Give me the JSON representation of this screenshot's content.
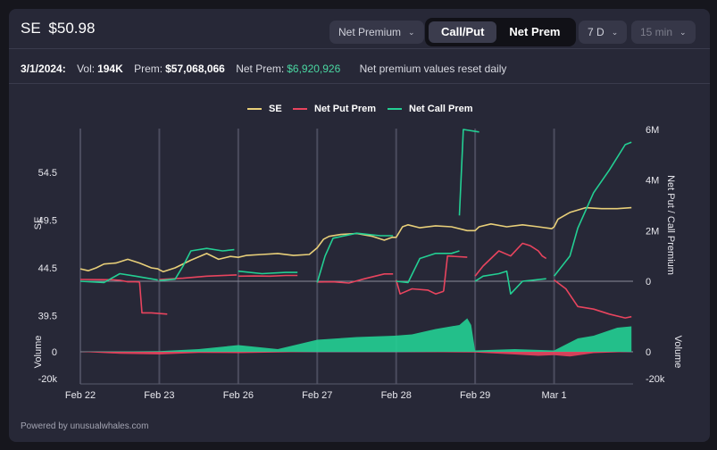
{
  "header": {
    "ticker": "SE",
    "price": "$50.98"
  },
  "controls": {
    "metric_dropdown": "Net Premium",
    "toggle": [
      "Call/Put",
      "Net Prem"
    ],
    "toggle_active": "Call/Put",
    "range_dropdown": "7 D",
    "interval_dropdown": "15 min"
  },
  "info": {
    "date": "3/1/2024:",
    "vol_label": "Vol:",
    "vol_value": "194K",
    "prem_label": "Prem:",
    "prem_value": "$57,068,066",
    "net_prem_label": "Net Prem:",
    "net_prem_value": "$6,920,926",
    "note": "Net premium values reset daily"
  },
  "footer": "Powered by unusualwhales.com",
  "colors": {
    "se": "#e8cf79",
    "put": "#e8445e",
    "call": "#23cf93",
    "grid": "#4b4c5e"
  },
  "chart_data": [
    {
      "type": "line",
      "legend": [
        "SE",
        "Net Put Prem",
        "Net Call Prem"
      ],
      "legend_position": "top-center",
      "x_ticks": [
        "Feb 22",
        "Feb 23",
        "Feb 26",
        "Feb 27",
        "Feb 28",
        "Feb 29",
        "Mar 1"
      ],
      "y_left_label": "SE",
      "y_left_ticks": [
        "54.5",
        "49.5",
        "44.5",
        "39.5"
      ],
      "y_left_range": [
        39.5,
        59.5
      ],
      "y_right_label": "Net Put / Call Premium",
      "y_right_ticks": [
        "6M",
        "4M",
        "2M",
        "0"
      ],
      "y_right_range": [
        -1500000,
        6000000
      ],
      "grid": true,
      "series": [
        {
          "name": "SE",
          "points": [
            [
              0,
              44.4
            ],
            [
              0.1,
              44.2
            ],
            [
              0.2,
              44.5
            ],
            [
              0.3,
              44.9
            ],
            [
              0.45,
              45.0
            ],
            [
              0.6,
              45.4
            ],
            [
              0.75,
              45.0
            ],
            [
              0.9,
              44.5
            ],
            [
              0.98,
              44.4
            ],
            [
              1.0,
              44.3
            ],
            [
              1.05,
              44.1
            ],
            [
              1.2,
              44.5
            ],
            [
              1.4,
              45.3
            ],
            [
              1.6,
              46.0
            ],
            [
              1.75,
              45.4
            ],
            [
              1.9,
              45.7
            ],
            [
              2.0,
              45.6
            ],
            [
              2.1,
              45.8
            ],
            [
              2.3,
              45.9
            ],
            [
              2.5,
              46.0
            ],
            [
              2.7,
              45.8
            ],
            [
              2.9,
              45.9
            ],
            [
              3.0,
              46.6
            ],
            [
              3.08,
              47.5
            ],
            [
              3.15,
              47.8
            ],
            [
              3.3,
              48.0
            ],
            [
              3.5,
              48.1
            ],
            [
              3.7,
              47.8
            ],
            [
              3.85,
              47.4
            ],
            [
              3.95,
              47.7
            ],
            [
              4.0,
              47.7
            ],
            [
              4.08,
              48.8
            ],
            [
              4.15,
              49.0
            ],
            [
              4.3,
              48.7
            ],
            [
              4.5,
              48.9
            ],
            [
              4.7,
              48.8
            ],
            [
              4.9,
              48.4
            ],
            [
              5.0,
              48.4
            ],
            [
              5.05,
              48.8
            ],
            [
              5.2,
              49.1
            ],
            [
              5.4,
              48.8
            ],
            [
              5.6,
              49.0
            ],
            [
              5.8,
              48.8
            ],
            [
              5.97,
              48.6
            ],
            [
              6.0,
              48.8
            ],
            [
              6.05,
              49.6
            ],
            [
              6.2,
              50.3
            ],
            [
              6.4,
              50.8
            ],
            [
              6.6,
              50.7
            ],
            [
              6.8,
              50.7
            ],
            [
              6.98,
              50.8
            ]
          ]
        },
        {
          "name": "Net Put Prem",
          "segments": [
            [
              [
                0,
                70000
              ],
              [
                0.4,
                60000
              ],
              [
                0.5,
                40000
              ],
              [
                0.6,
                -20000
              ],
              [
                0.7,
                -20000
              ],
              [
                0.75,
                -30000
              ]
            ],
            [
              [
                0.75,
                -30000
              ],
              [
                0.78,
                -1250000
              ],
              [
                0.9,
                -1250000
              ],
              [
                1.1,
                -1300000
              ]
            ],
            [
              [
                1.0,
                70000
              ],
              [
                1.3,
                120000
              ],
              [
                1.6,
                200000
              ],
              [
                1.9,
                240000
              ],
              [
                1.98,
                250000
              ]
            ],
            [
              [
                2.0,
                200000
              ],
              [
                2.2,
                210000
              ],
              [
                2.4,
                200000
              ],
              [
                2.6,
                230000
              ],
              [
                2.75,
                230000
              ]
            ],
            [
              [
                3.0,
                -30000
              ],
              [
                3.2,
                -20000
              ],
              [
                3.4,
                -70000
              ],
              [
                3.6,
                100000
              ],
              [
                3.85,
                290000
              ],
              [
                3.96,
                290000
              ]
            ],
            [
              [
                4.0,
                50000
              ],
              [
                4.05,
                -500000
              ],
              [
                4.2,
                -300000
              ],
              [
                4.4,
                -350000
              ],
              [
                4.5,
                -500000
              ],
              [
                4.6,
                -400000
              ]
            ],
            [
              [
                4.6,
                -400000
              ],
              [
                4.65,
                1000000
              ],
              [
                4.9,
                950000
              ]
            ],
            [
              [
                5.0,
                200000
              ],
              [
                5.1,
                600000
              ],
              [
                5.3,
                1200000
              ],
              [
                5.45,
                1000000
              ],
              [
                5.6,
                1500000
              ],
              [
                5.7,
                1400000
              ],
              [
                5.8,
                1200000
              ],
              [
                5.85,
                1000000
              ],
              [
                5.9,
                900000
              ]
            ],
            [
              [
                6.0,
                50000
              ],
              [
                6.15,
                -300000
              ],
              [
                6.3,
                -1000000
              ],
              [
                6.5,
                -1100000
              ],
              [
                6.7,
                -1300000
              ],
              [
                6.9,
                -1450000
              ],
              [
                6.98,
                -1400000
              ]
            ]
          ]
        },
        {
          "name": "Net Call Prem",
          "segments": [
            [
              [
                0,
                0
              ],
              [
                0.3,
                -50000
              ],
              [
                0.5,
                300000
              ],
              [
                0.7,
                200000
              ],
              [
                0.98,
                50000
              ]
            ],
            [
              [
                1.0,
                30000
              ],
              [
                1.2,
                80000
              ],
              [
                1.3,
                600000
              ],
              [
                1.4,
                1200000
              ],
              [
                1.6,
                1300000
              ],
              [
                1.8,
                1200000
              ],
              [
                1.95,
                1250000
              ]
            ],
            [
              [
                2.0,
                400000
              ],
              [
                2.3,
                300000
              ],
              [
                2.6,
                350000
              ],
              [
                2.75,
                350000
              ]
            ],
            [
              [
                3.0,
                -50000
              ],
              [
                3.1,
                1000000
              ],
              [
                3.2,
                1700000
              ],
              [
                3.5,
                1900000
              ],
              [
                3.8,
                1800000
              ],
              [
                3.96,
                1800000
              ]
            ],
            [
              [
                4.0,
                0
              ],
              [
                4.15,
                -50000
              ],
              [
                4.3,
                900000
              ],
              [
                4.5,
                1100000
              ],
              [
                4.7,
                1100000
              ],
              [
                4.8,
                1200000
              ]
            ],
            [
              [
                4.8,
                2600000
              ],
              [
                4.85,
                6000000
              ],
              [
                5.05,
                5900000
              ]
            ],
            [
              [
                5.0,
                0
              ],
              [
                5.1,
                200000
              ],
              [
                5.3,
                300000
              ],
              [
                5.4,
                400000
              ],
              [
                5.45,
                -500000
              ],
              [
                5.6,
                0
              ],
              [
                5.9,
                100000
              ]
            ],
            [
              [
                6.0,
                200000
              ],
              [
                6.2,
                1000000
              ],
              [
                6.3,
                2100000
              ],
              [
                6.5,
                3500000
              ],
              [
                6.7,
                4400000
              ],
              [
                6.9,
                5400000
              ],
              [
                6.98,
                5500000
              ]
            ]
          ]
        }
      ]
    },
    {
      "type": "area",
      "y_left_label": "Volume",
      "y_left_ticks": [
        "0",
        "-20k"
      ],
      "y_right_label": "Volume",
      "y_right_ticks": [
        "0",
        "-20k"
      ],
      "series": [
        {
          "name": "Net Call Volume",
          "points": [
            [
              0,
              0
            ],
            [
              0.5,
              300
            ],
            [
              1.0,
              500
            ],
            [
              1.5,
              2000
            ],
            [
              2.0,
              5000
            ],
            [
              2.5,
              2000
            ],
            [
              3.0,
              9000
            ],
            [
              3.5,
              11000
            ],
            [
              3.98,
              12000
            ],
            [
              4.2,
              13000
            ],
            [
              4.5,
              17000
            ],
            [
              4.8,
              20000
            ],
            [
              4.9,
              25000
            ],
            [
              4.95,
              20000
            ],
            [
              5.0,
              1000
            ],
            [
              5.5,
              2000
            ],
            [
              6.0,
              1000
            ],
            [
              6.3,
              10000
            ],
            [
              6.5,
              12000
            ],
            [
              6.8,
              18000
            ],
            [
              6.98,
              19000
            ]
          ]
        },
        {
          "name": "Net Put Volume",
          "points": [
            [
              0,
              0
            ],
            [
              0.5,
              -1500
            ],
            [
              1.0,
              -2000
            ],
            [
              1.5,
              -800
            ],
            [
              2.0,
              -1000
            ],
            [
              2.5,
              -500
            ],
            [
              3.0,
              0
            ],
            [
              4.0,
              0
            ],
            [
              5.0,
              -500
            ],
            [
              5.5,
              -2000
            ],
            [
              5.8,
              -3000
            ],
            [
              6.0,
              -2500
            ],
            [
              6.2,
              -3500
            ],
            [
              6.5,
              -1000
            ],
            [
              6.98,
              0
            ]
          ]
        }
      ]
    }
  ]
}
